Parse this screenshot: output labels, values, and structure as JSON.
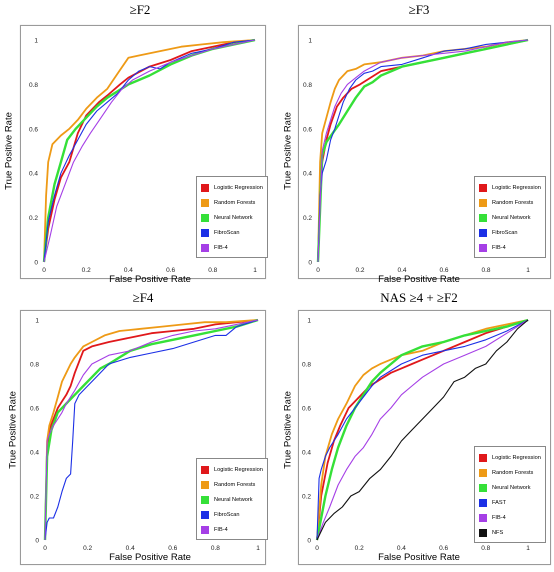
{
  "colors": {
    "Logistic Regression": "#e0181b",
    "Random Forests": "#ee9a16",
    "Neural Network": "#35e038",
    "FibroScan": "#1b2fe6",
    "FAST": "#1b2fe6",
    "FIB-4": "#a53fe6",
    "NFS": "#111111"
  },
  "chart_data": [
    {
      "type": "line",
      "title": "≥F2",
      "xlabel": "False Positive Rate",
      "ylabel": "True Positive Rate",
      "xlim": [
        0,
        1
      ],
      "ylim": [
        0,
        1
      ],
      "xticks": [
        "0",
        "0.2",
        "0.4",
        "0.6",
        "0.8",
        "1"
      ],
      "yticks": [
        "0",
        "0.2",
        "0.4",
        "0.6",
        "0.8",
        "1"
      ],
      "grid": false,
      "legend_position": "bottom-right",
      "series": [
        {
          "name": "Logistic Regression",
          "x": [
            0,
            0.02,
            0.05,
            0.08,
            0.12,
            0.16,
            0.2,
            0.26,
            0.3,
            0.36,
            0.4,
            0.5,
            0.6,
            0.7,
            0.8,
            0.9,
            1
          ],
          "y": [
            0,
            0.15,
            0.28,
            0.38,
            0.45,
            0.58,
            0.66,
            0.72,
            0.75,
            0.8,
            0.83,
            0.88,
            0.91,
            0.95,
            0.97,
            0.99,
            1
          ]
        },
        {
          "name": "Random Forests",
          "x": [
            0,
            0.01,
            0.02,
            0.04,
            0.08,
            0.12,
            0.16,
            0.2,
            0.25,
            0.3,
            0.35,
            0.4,
            0.45,
            0.55,
            0.65,
            0.75,
            0.85,
            1
          ],
          "y": [
            0,
            0.3,
            0.45,
            0.53,
            0.57,
            0.6,
            0.64,
            0.69,
            0.74,
            0.78,
            0.85,
            0.92,
            0.93,
            0.95,
            0.97,
            0.98,
            0.99,
            1
          ]
        },
        {
          "name": "Neural Network",
          "x": [
            0,
            0.02,
            0.05,
            0.08,
            0.11,
            0.15,
            0.2,
            0.25,
            0.3,
            0.35,
            0.4,
            0.45,
            0.5,
            0.6,
            0.7,
            0.8,
            0.9,
            1
          ],
          "y": [
            0,
            0.2,
            0.35,
            0.45,
            0.55,
            0.6,
            0.65,
            0.7,
            0.74,
            0.77,
            0.8,
            0.82,
            0.84,
            0.89,
            0.93,
            0.96,
            0.98,
            1
          ]
        },
        {
          "name": "FibroScan",
          "x": [
            0,
            0.02,
            0.05,
            0.08,
            0.12,
            0.16,
            0.2,
            0.25,
            0.3,
            0.35,
            0.4,
            0.45,
            0.5,
            0.55,
            0.6,
            0.7,
            0.8,
            0.9,
            1
          ],
          "y": [
            0,
            0.18,
            0.3,
            0.4,
            0.48,
            0.55,
            0.62,
            0.68,
            0.72,
            0.76,
            0.82,
            0.86,
            0.88,
            0.87,
            0.9,
            0.94,
            0.96,
            0.99,
            1
          ]
        },
        {
          "name": "FIB-4",
          "x": [
            0,
            0.03,
            0.06,
            0.1,
            0.14,
            0.18,
            0.22,
            0.27,
            0.32,
            0.37,
            0.42,
            0.5,
            0.6,
            0.7,
            0.8,
            0.9,
            1
          ],
          "y": [
            0,
            0.12,
            0.25,
            0.35,
            0.45,
            0.52,
            0.58,
            0.65,
            0.72,
            0.78,
            0.82,
            0.86,
            0.9,
            0.93,
            0.96,
            0.98,
            1
          ]
        }
      ]
    },
    {
      "type": "line",
      "title": "≥F3",
      "xlabel": "False Positive Rate",
      "ylabel": "True Positive Rate",
      "xlim": [
        0,
        1
      ],
      "ylim": [
        0,
        1
      ],
      "xticks": [
        "0",
        "0.2",
        "0.4",
        "0.6",
        "0.8",
        "1"
      ],
      "yticks": [
        "0",
        "0.2",
        "0.4",
        "0.6",
        "0.8",
        "1"
      ],
      "grid": false,
      "legend_position": "bottom-right",
      "series": [
        {
          "name": "Logistic Regression",
          "x": [
            0,
            0.01,
            0.02,
            0.04,
            0.06,
            0.09,
            0.12,
            0.16,
            0.2,
            0.25,
            0.3,
            0.4,
            0.5,
            0.6,
            0.7,
            0.8,
            0.9,
            1
          ],
          "y": [
            0,
            0.3,
            0.45,
            0.55,
            0.62,
            0.7,
            0.74,
            0.78,
            0.8,
            0.83,
            0.86,
            0.88,
            0.9,
            0.92,
            0.94,
            0.96,
            0.98,
            1
          ]
        },
        {
          "name": "Random Forests",
          "x": [
            0,
            0.01,
            0.02,
            0.04,
            0.06,
            0.08,
            0.1,
            0.14,
            0.18,
            0.22,
            0.3,
            0.4,
            0.5,
            0.6,
            0.7,
            0.8,
            0.9,
            1
          ],
          "y": [
            0,
            0.45,
            0.58,
            0.65,
            0.72,
            0.78,
            0.82,
            0.86,
            0.87,
            0.89,
            0.9,
            0.92,
            0.93,
            0.95,
            0.96,
            0.97,
            0.99,
            1
          ]
        },
        {
          "name": "Neural Network",
          "x": [
            0,
            0.02,
            0.04,
            0.07,
            0.1,
            0.14,
            0.18,
            0.22,
            0.26,
            0.3,
            0.35,
            0.4,
            0.5,
            0.6,
            0.7,
            0.8,
            0.9,
            1
          ],
          "y": [
            0,
            0.48,
            0.54,
            0.58,
            0.62,
            0.68,
            0.74,
            0.79,
            0.81,
            0.84,
            0.86,
            0.88,
            0.9,
            0.92,
            0.94,
            0.96,
            0.98,
            1
          ]
        },
        {
          "name": "FibroScan",
          "x": [
            0,
            0.01,
            0.02,
            0.04,
            0.06,
            0.08,
            0.1,
            0.12,
            0.15,
            0.18,
            0.22,
            0.26,
            0.3,
            0.4,
            0.5,
            0.6,
            0.7,
            0.8,
            0.9,
            1
          ],
          "y": [
            0,
            0.3,
            0.4,
            0.46,
            0.55,
            0.6,
            0.66,
            0.72,
            0.78,
            0.82,
            0.85,
            0.86,
            0.88,
            0.89,
            0.92,
            0.95,
            0.96,
            0.98,
            0.99,
            1
          ]
        },
        {
          "name": "FIB-4",
          "x": [
            0,
            0.02,
            0.04,
            0.06,
            0.08,
            0.11,
            0.14,
            0.18,
            0.22,
            0.26,
            0.3,
            0.4,
            0.5,
            0.6,
            0.7,
            0.8,
            0.9,
            1
          ],
          "y": [
            0,
            0.5,
            0.58,
            0.64,
            0.7,
            0.76,
            0.8,
            0.83,
            0.86,
            0.88,
            0.9,
            0.92,
            0.93,
            0.94,
            0.95,
            0.97,
            0.99,
            1
          ]
        }
      ]
    },
    {
      "type": "line",
      "title": "≥F4",
      "xlabel": "False Positive Rate",
      "ylabel": "True Positive Rate",
      "xlim": [
        0,
        1
      ],
      "ylim": [
        0,
        1
      ],
      "xticks": [
        "0",
        "0.2",
        "0.4",
        "0.6",
        "0.8",
        "1"
      ],
      "yticks": [
        "0",
        "0.2",
        "0.4",
        "0.6",
        "0.8",
        "1"
      ],
      "grid": false,
      "legend_position": "bottom-right",
      "series": [
        {
          "name": "Logistic Regression",
          "x": [
            0,
            0.01,
            0.02,
            0.04,
            0.06,
            0.08,
            0.1,
            0.12,
            0.14,
            0.18,
            0.22,
            0.3,
            0.4,
            0.5,
            0.6,
            0.7,
            0.8,
            0.9,
            1
          ],
          "y": [
            0,
            0.4,
            0.5,
            0.55,
            0.6,
            0.63,
            0.66,
            0.7,
            0.76,
            0.86,
            0.88,
            0.9,
            0.92,
            0.94,
            0.95,
            0.96,
            0.98,
            0.99,
            1
          ]
        },
        {
          "name": "Random Forests",
          "x": [
            0,
            0.01,
            0.02,
            0.04,
            0.06,
            0.08,
            0.1,
            0.12,
            0.14,
            0.18,
            0.22,
            0.28,
            0.35,
            0.45,
            0.55,
            0.65,
            0.75,
            0.85,
            1
          ],
          "y": [
            0,
            0.45,
            0.52,
            0.58,
            0.65,
            0.72,
            0.76,
            0.8,
            0.83,
            0.88,
            0.9,
            0.93,
            0.95,
            0.96,
            0.97,
            0.98,
            0.99,
            0.99,
            1
          ]
        },
        {
          "name": "Neural Network",
          "x": [
            0,
            0.01,
            0.03,
            0.06,
            0.1,
            0.14,
            0.18,
            0.22,
            0.26,
            0.3,
            0.35,
            0.4,
            0.5,
            0.6,
            0.7,
            0.8,
            0.9,
            1
          ],
          "y": [
            0,
            0.38,
            0.5,
            0.58,
            0.62,
            0.66,
            0.7,
            0.74,
            0.78,
            0.8,
            0.83,
            0.86,
            0.89,
            0.91,
            0.93,
            0.95,
            0.97,
            1
          ]
        },
        {
          "name": "FibroScan",
          "x": [
            0,
            0.01,
            0.02,
            0.04,
            0.06,
            0.08,
            0.1,
            0.12,
            0.13,
            0.14,
            0.16,
            0.2,
            0.25,
            0.3,
            0.4,
            0.5,
            0.6,
            0.7,
            0.8,
            0.85,
            0.9,
            1
          ],
          "y": [
            0,
            0.08,
            0.1,
            0.1,
            0.15,
            0.22,
            0.28,
            0.3,
            0.45,
            0.62,
            0.66,
            0.7,
            0.75,
            0.8,
            0.83,
            0.85,
            0.87,
            0.9,
            0.93,
            0.93,
            0.97,
            1
          ]
        },
        {
          "name": "FIB-4",
          "x": [
            0,
            0.01,
            0.02,
            0.04,
            0.06,
            0.08,
            0.1,
            0.14,
            0.18,
            0.22,
            0.26,
            0.3,
            0.4,
            0.5,
            0.6,
            0.7,
            0.8,
            0.9,
            1
          ],
          "y": [
            0,
            0.45,
            0.48,
            0.52,
            0.55,
            0.58,
            0.62,
            0.68,
            0.75,
            0.8,
            0.82,
            0.84,
            0.86,
            0.9,
            0.93,
            0.95,
            0.96,
            0.98,
            1
          ]
        }
      ]
    },
    {
      "type": "line",
      "title": "NAS ≥4 + ≥F2",
      "xlabel": "False Positive Rate",
      "ylabel": "True Positive Rate",
      "xlim": [
        0,
        1
      ],
      "ylim": [
        0,
        1
      ],
      "xticks": [
        "0",
        "0.2",
        "0.4",
        "0.6",
        "0.8",
        "1"
      ],
      "yticks": [
        "0",
        "0.2",
        "0.4",
        "0.6",
        "0.8",
        "1"
      ],
      "grid": false,
      "legend_position": "bottom-right",
      "series": [
        {
          "name": "Logistic Regression",
          "x": [
            0,
            0.02,
            0.05,
            0.08,
            0.11,
            0.15,
            0.2,
            0.25,
            0.3,
            0.35,
            0.4,
            0.45,
            0.5,
            0.6,
            0.7,
            0.8,
            0.9,
            1
          ],
          "y": [
            0,
            0.2,
            0.35,
            0.45,
            0.52,
            0.6,
            0.65,
            0.7,
            0.73,
            0.76,
            0.78,
            0.8,
            0.82,
            0.86,
            0.9,
            0.94,
            0.97,
            1
          ]
        },
        {
          "name": "Random Forests",
          "x": [
            0,
            0.02,
            0.04,
            0.07,
            0.1,
            0.14,
            0.18,
            0.22,
            0.26,
            0.3,
            0.35,
            0.4,
            0.5,
            0.6,
            0.7,
            0.8,
            0.9,
            1
          ],
          "y": [
            0,
            0.25,
            0.38,
            0.48,
            0.55,
            0.62,
            0.7,
            0.75,
            0.78,
            0.8,
            0.82,
            0.84,
            0.86,
            0.9,
            0.93,
            0.96,
            0.98,
            1
          ]
        },
        {
          "name": "Neural Network",
          "x": [
            0,
            0.02,
            0.04,
            0.07,
            0.1,
            0.14,
            0.18,
            0.22,
            0.26,
            0.3,
            0.35,
            0.4,
            0.5,
            0.6,
            0.7,
            0.8,
            0.9,
            1
          ],
          "y": [
            0,
            0.1,
            0.2,
            0.32,
            0.42,
            0.52,
            0.6,
            0.66,
            0.72,
            0.76,
            0.8,
            0.84,
            0.88,
            0.9,
            0.93,
            0.95,
            0.97,
            1
          ]
        },
        {
          "name": "FAST",
          "x": [
            0,
            0.01,
            0.02,
            0.04,
            0.06,
            0.08,
            0.1,
            0.14,
            0.18,
            0.22,
            0.26,
            0.3,
            0.35,
            0.4,
            0.5,
            0.6,
            0.7,
            0.8,
            0.9,
            1
          ],
          "y": [
            0,
            0.28,
            0.32,
            0.38,
            0.42,
            0.45,
            0.48,
            0.55,
            0.6,
            0.65,
            0.7,
            0.74,
            0.77,
            0.8,
            0.84,
            0.86,
            0.88,
            0.91,
            0.95,
            1
          ]
        },
        {
          "name": "FIB-4",
          "x": [
            0,
            0.03,
            0.06,
            0.1,
            0.14,
            0.18,
            0.22,
            0.26,
            0.3,
            0.35,
            0.4,
            0.45,
            0.5,
            0.6,
            0.7,
            0.8,
            0.9,
            1
          ],
          "y": [
            0,
            0.08,
            0.15,
            0.25,
            0.32,
            0.38,
            0.42,
            0.48,
            0.55,
            0.6,
            0.66,
            0.7,
            0.74,
            0.8,
            0.84,
            0.88,
            0.94,
            1
          ]
        },
        {
          "name": "NFS",
          "x": [
            0,
            0.04,
            0.08,
            0.12,
            0.16,
            0.2,
            0.25,
            0.3,
            0.35,
            0.4,
            0.45,
            0.5,
            0.55,
            0.6,
            0.65,
            0.7,
            0.75,
            0.8,
            0.85,
            0.9,
            0.95,
            1
          ],
          "y": [
            0,
            0.08,
            0.12,
            0.15,
            0.2,
            0.22,
            0.28,
            0.32,
            0.38,
            0.45,
            0.5,
            0.55,
            0.6,
            0.65,
            0.72,
            0.74,
            0.78,
            0.8,
            0.86,
            0.9,
            0.96,
            1
          ]
        }
      ]
    }
  ]
}
